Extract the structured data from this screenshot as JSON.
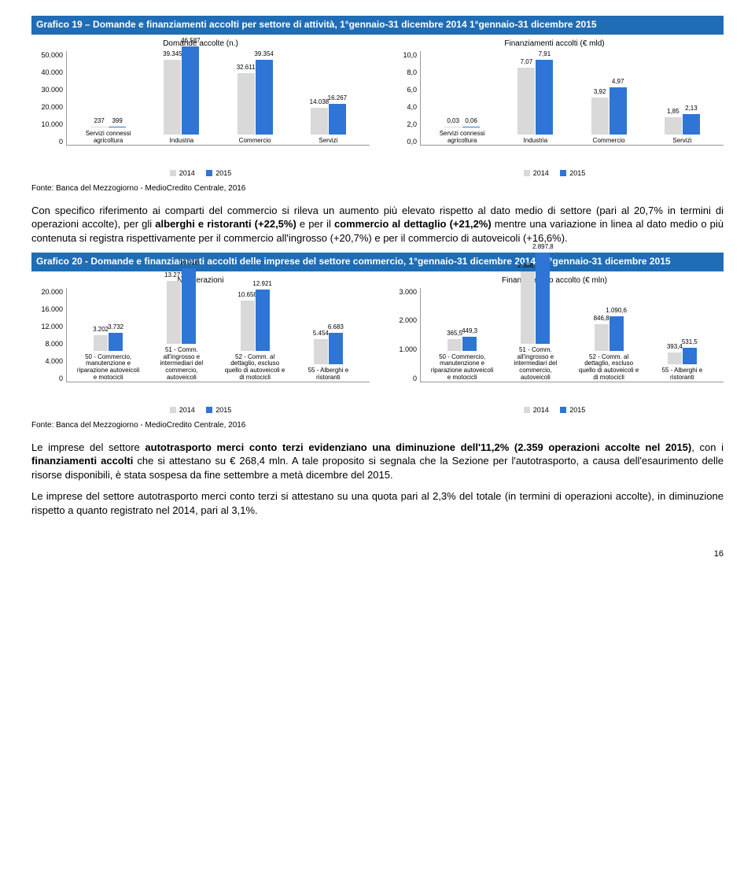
{
  "chart19": {
    "title": "Grafico 19 – Domande e finanziamenti accolti per settore di attività, 1°gennaio-31 dicembre 2014 1°gennaio-31 dicembre 2015",
    "left": {
      "subtitle": "Domande accolte (n.)",
      "ymax": 50000,
      "yticks": [
        "50.000",
        "40.000",
        "30.000",
        "20.000",
        "10.000",
        "0"
      ],
      "categories": [
        "Servizi connessi agricoltura",
        "Industria",
        "Commercio",
        "Servizi"
      ],
      "v2014": [
        237,
        39345,
        32611,
        14038
      ],
      "v2015": [
        399,
        46587,
        39354,
        16267
      ],
      "labels2014": [
        "237",
        "39.345",
        "32.611",
        "14.038"
      ],
      "labels2015": [
        "399",
        "46.587",
        "39.354",
        "16.267"
      ]
    },
    "right": {
      "subtitle": "Finanziamenti accolti (€ mld)",
      "ymax": 10,
      "yticks": [
        "10,0",
        "8,0",
        "6,0",
        "4,0",
        "2,0",
        "0,0"
      ],
      "categories": [
        "Servizi connessi agricoltura",
        "Industria",
        "Commercio",
        "Servizi"
      ],
      "v2014": [
        0.03,
        7.07,
        3.92,
        1.85
      ],
      "v2015": [
        0.06,
        7.91,
        4.97,
        2.13
      ],
      "labels2014": [
        "0,03",
        "7,07",
        "3,92",
        "1,85"
      ],
      "labels2015": [
        "0,06",
        "7,91",
        "4,97",
        "2,13"
      ]
    },
    "colors": {
      "c2014": "#d9d9d9",
      "c2015": "#2e75d6"
    },
    "legend": [
      "2014",
      "2015"
    ]
  },
  "source": "Fonte: Banca del Mezzogiorno - MedioCredito Centrale, 2016",
  "para1": "Con specifico riferimento ai comparti del commercio si rileva un aumento più elevato rispetto al dato medio di settore (pari al 20,7% in termini di operazioni accolte), per gli <b>alberghi e ristoranti (+22,5%)</b> e per il <b>commercio al dettaglio (+21,2%)</b> mentre una variazione in linea al dato medio o più contenuta si registra rispettivamente per il commercio all'ingrosso (+20,7%) e per il commercio di autoveicoli (+16,6%).",
  "chart20": {
    "title": "Grafico 20 - Domande e finanziamenti accolti delle imprese del settore commercio, 1°gennaio-31 dicembre 2014– 1°gennaio-31 dicembre 2015",
    "left": {
      "subtitle": "N. operazioni",
      "ymax": 20000,
      "yticks": [
        "20.000",
        "16.000",
        "12.000",
        "8.000",
        "4.000",
        "0"
      ],
      "categories": [
        "50 - Commercio, manutenzione e riparazione autoveicoli e motocicli",
        "51 - Comm. all'ingrosso e intermediari del commercio, autoveicoli",
        "52 - Comm. al dettaglio, escluso quello di autoveicoli e di motocicli",
        "55 - Alberghi e ristoranti"
      ],
      "v2014": [
        3202,
        13271,
        10658,
        5454
      ],
      "v2015": [
        3732,
        16018,
        12921,
        6683
      ],
      "labels2014": [
        "3.202",
        "13.271",
        "10.658",
        "5.454"
      ],
      "labels2015": [
        "3.732",
        "16.018",
        "12.921",
        "6.683"
      ]
    },
    "right": {
      "subtitle": "Finanziamento accolto (€ mln)",
      "ymax": 3000,
      "yticks": [
        "3.000",
        "2.000",
        "1.000",
        "0"
      ],
      "categories": [
        "50 - Commercio, manutenzione e riparazione autoveicoli e motocicli",
        "51 - Comm. all'ingrosso e intermediari del commercio, autoveicoli",
        "52 - Comm. al dettaglio, escluso quello di autoveicoli e di motocicli",
        "55 - Alberghi e ristoranti"
      ],
      "v2014": [
        365.5,
        2308.7,
        846.8,
        393.4
      ],
      "v2015": [
        449.3,
        2897.8,
        1090.6,
        531.5
      ],
      "labels2014": [
        "365,5",
        "2.308,7",
        "846,8",
        "393,4"
      ],
      "labels2015": [
        "449,3",
        "2.897,8",
        "1.090,6",
        "531,5"
      ]
    },
    "colors": {
      "c2014": "#d9d9d9",
      "c2015": "#2e75d6"
    },
    "legend": [
      "2014",
      "2015"
    ]
  },
  "para2": "Le imprese del settore <b>autotrasporto merci conto terzi evidenziano una diminuzione dell'11,2% (2.359 operazioni accolte nel 2015)</b>, con i <b>finanziamenti accolti</b> che si attestano su € 268,4 mln. A tale proposito si segnala che la Sezione per l'autotrasporto, a causa dell'esaurimento delle risorse disponibili, è stata sospesa da fine settembre a metà dicembre del 2015.",
  "para3": "Le imprese del settore autotrasporto merci conto terzi si attestano su una quota pari al 2,3% del totale (in termini di operazioni accolte), in diminuzione rispetto a quanto registrato nel 2014, pari al 3,1%.",
  "page": "16"
}
